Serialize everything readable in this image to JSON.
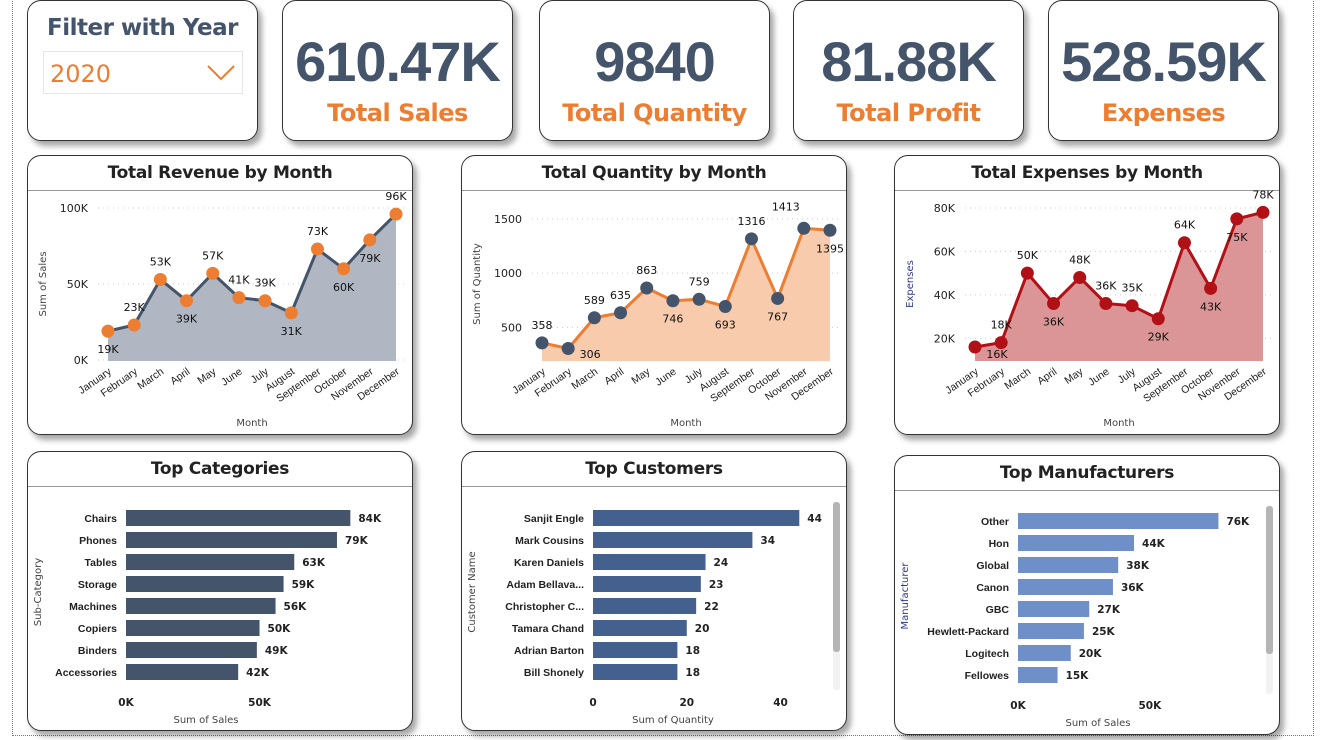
{
  "filter": {
    "title": "Filter with Year",
    "selected": "2020"
  },
  "kpis": [
    {
      "value": "610.47K",
      "label": "Total Sales"
    },
    {
      "value": "9840",
      "label": "Total Quantity"
    },
    {
      "value": "81.88K",
      "label": "Total Profit"
    },
    {
      "value": "528.59K",
      "label": "Expenses"
    }
  ],
  "colors": {
    "kpi_value": "#44546a",
    "accent": "#ed7d31",
    "revenue_line": "#44546a",
    "revenue_fill": "#b0b7c2",
    "quantity_line": "#ed7d31",
    "quantity_fill": "#f8cbad",
    "expenses_line": "#b11116",
    "expenses_fill": "#dc9597",
    "category_bar": "#44546a",
    "customer_bar": "#44608f",
    "manufacturer_bar": "#6f8fc8"
  },
  "chart_data": [
    {
      "type": "area",
      "title": "Total Revenue by Month",
      "xlabel": "Month",
      "ylabel": "Sum of Sales",
      "categories": [
        "January",
        "February",
        "March",
        "April",
        "May",
        "June",
        "July",
        "August",
        "September",
        "October",
        "November",
        "December"
      ],
      "values": [
        19000,
        23000,
        53000,
        39000,
        57000,
        41000,
        39000,
        31000,
        73000,
        60000,
        79000,
        96000
      ],
      "labels": [
        "19K",
        "23K",
        "53K",
        "39K",
        "57K",
        "41K",
        "39K",
        "31K",
        "73K",
        "60K",
        "79K",
        "96K"
      ],
      "yticks": [
        {
          "v": 0,
          "t": "0K"
        },
        {
          "v": 50000,
          "t": "50K"
        },
        {
          "v": 100000,
          "t": "100K"
        }
      ],
      "ylim": [
        0,
        100000
      ],
      "grid": true
    },
    {
      "type": "area",
      "title": "Total Quantity by Month",
      "xlabel": "Month",
      "ylabel": "Sum of Quantity",
      "categories": [
        "January",
        "February",
        "March",
        "April",
        "May",
        "June",
        "July",
        "August",
        "September",
        "October",
        "November",
        "December"
      ],
      "values": [
        358,
        306,
        589,
        635,
        863,
        746,
        759,
        693,
        1316,
        767,
        1413,
        1395
      ],
      "labels": [
        "358",
        "306",
        "589",
        "635",
        "863",
        "746",
        "759",
        "693",
        "1316",
        "767",
        "1413",
        "1395"
      ],
      "yticks": [
        {
          "v": 500,
          "t": "500"
        },
        {
          "v": 1000,
          "t": "1000"
        },
        {
          "v": 1500,
          "t": "1500"
        }
      ],
      "ylim": [
        200,
        1600
      ],
      "grid": true
    },
    {
      "type": "area",
      "title": "Total Expenses by Month",
      "xlabel": "Month",
      "ylabel": "Expenses",
      "categories": [
        "January",
        "February",
        "March",
        "April",
        "May",
        "June",
        "July",
        "August",
        "September",
        "October",
        "November",
        "December"
      ],
      "values": [
        16000,
        18000,
        50000,
        36000,
        48000,
        36000,
        35000,
        29000,
        64000,
        43000,
        75000,
        78000
      ],
      "labels": [
        "16K",
        "18K",
        "50K",
        "36K",
        "48K",
        "36K",
        "35K",
        "29K",
        "64K",
        "43K",
        "75K",
        "78K"
      ],
      "yticks": [
        {
          "v": 20000,
          "t": "20K"
        },
        {
          "v": 40000,
          "t": "40K"
        },
        {
          "v": 60000,
          "t": "60K"
        },
        {
          "v": 80000,
          "t": "80K"
        }
      ],
      "ylim": [
        10000,
        80000
      ],
      "grid": true
    },
    {
      "type": "bar",
      "orientation": "horizontal",
      "title": "Top Categories",
      "xlabel": "Sum of Sales",
      "ylabel": "Sub-Category",
      "categories": [
        "Chairs",
        "Phones",
        "Tables",
        "Storage",
        "Machines",
        "Copiers",
        "Binders",
        "Accessories"
      ],
      "values": [
        84000,
        79000,
        63000,
        59000,
        56000,
        50000,
        49000,
        42000
      ],
      "labels": [
        "84K",
        "79K",
        "63K",
        "59K",
        "56K",
        "50K",
        "49K",
        "42K"
      ],
      "xticks": [
        {
          "v": 0,
          "t": "0K"
        },
        {
          "v": 50000,
          "t": "50K"
        }
      ],
      "xlim": [
        0,
        85000
      ]
    },
    {
      "type": "bar",
      "orientation": "horizontal",
      "title": "Top Customers",
      "xlabel": "Sum of Quantity",
      "ylabel": "Customer Name",
      "categories": [
        "Sanjit Engle",
        "Mark Cousins",
        "Karen Daniels",
        "Adam Bellava...",
        "Christopher C...",
        "Tamara Chand",
        "Adrian Barton",
        "Bill Shonely"
      ],
      "values": [
        44,
        34,
        24,
        23,
        22,
        20,
        18,
        18
      ],
      "labels": [
        "44",
        "34",
        "24",
        "23",
        "22",
        "20",
        "18",
        "18"
      ],
      "xticks": [
        {
          "v": 0,
          "t": "0"
        },
        {
          "v": 20,
          "t": "20"
        },
        {
          "v": 40,
          "t": "40"
        }
      ],
      "xlim": [
        0,
        45
      ]
    },
    {
      "type": "bar",
      "orientation": "horizontal",
      "title": "Top Manufacturers",
      "xlabel": "Sum of Sales",
      "ylabel": "Manufacturer",
      "categories": [
        "Other",
        "Hon",
        "Global",
        "Canon",
        "GBC",
        "Hewlett-Packard",
        "Logitech",
        "Fellowes"
      ],
      "values": [
        76000,
        44000,
        38000,
        36000,
        27000,
        25000,
        20000,
        15000
      ],
      "labels": [
        "76K",
        "44K",
        "38K",
        "36K",
        "27K",
        "25K",
        "20K",
        "15K"
      ],
      "xticks": [
        {
          "v": 0,
          "t": "0K"
        },
        {
          "v": 50000,
          "t": "50K"
        }
      ],
      "xlim": [
        0,
        80000
      ]
    }
  ]
}
